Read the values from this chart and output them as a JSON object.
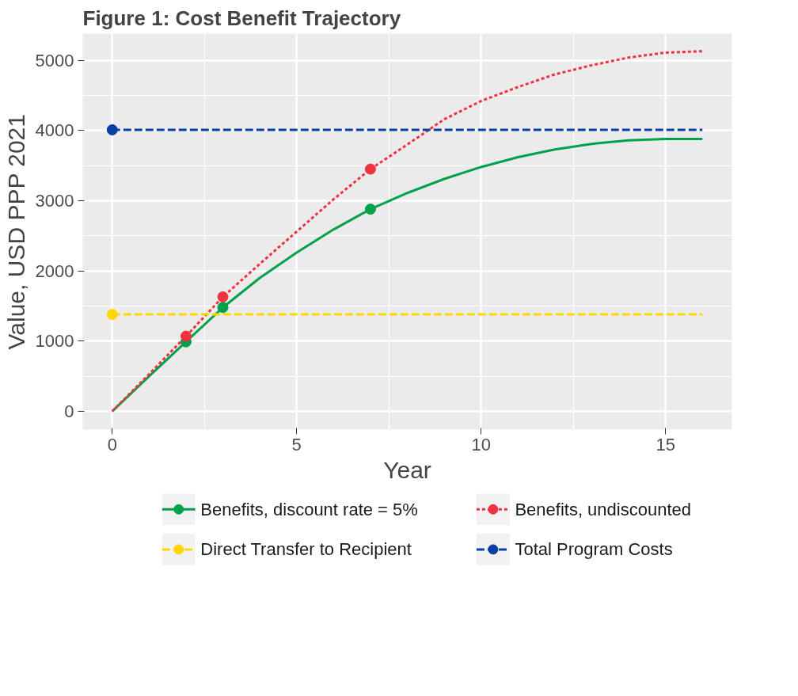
{
  "chart_data": {
    "type": "line",
    "title": "Figure 1: Cost Benefit Trajectory",
    "xlabel": "Year",
    "ylabel": "Value, USD PPP 2021",
    "xlim": [
      -0.8,
      16.8
    ],
    "ylim": [
      -260,
      5380
    ],
    "xticks": [
      0,
      5,
      10,
      15
    ],
    "yticks": [
      0,
      1000,
      2000,
      3000,
      4000,
      5000
    ],
    "grid": true,
    "legend": "bottom",
    "series": [
      {
        "name": "Benefits, discount rate = 5%",
        "color": "#00a14b",
        "line_style": "solid",
        "x": [
          0,
          1,
          2,
          3,
          4,
          5,
          6,
          7,
          8,
          9,
          10,
          11,
          12,
          13,
          14,
          15,
          16
        ],
        "values": [
          0,
          500,
          990,
          1480,
          1900,
          2260,
          2590,
          2880,
          3110,
          3310,
          3480,
          3620,
          3730,
          3810,
          3860,
          3880,
          3880
        ]
      },
      {
        "type": "scatter",
        "color": "#00a14b",
        "x": [
          2,
          3,
          7
        ],
        "values": [
          990,
          1480,
          2880
        ]
      },
      {
        "name": "Benefits, undiscounted",
        "color": "#ef3340",
        "line_style": "dotted",
        "x": [
          0,
          1,
          2,
          3,
          4,
          5,
          6,
          7,
          8,
          9,
          10,
          11,
          12,
          13,
          14,
          15,
          16
        ],
        "values": [
          0,
          530,
          1070,
          1630,
          2100,
          2560,
          3020,
          3450,
          3800,
          4160,
          4420,
          4620,
          4800,
          4930,
          5040,
          5110,
          5130
        ]
      },
      {
        "type": "scatter",
        "color": "#ef3340",
        "x": [
          2,
          3,
          7
        ],
        "values": [
          1070,
          1630,
          3450
        ]
      },
      {
        "name": "Direct Transfer to Recipient",
        "color": "#ffd700",
        "line_style": "dashed",
        "x": [
          0,
          16
        ],
        "values": [
          1380,
          1380
        ]
      },
      {
        "type": "scatter",
        "color": "#ffd700",
        "x": [
          0
        ],
        "values": [
          1380
        ]
      },
      {
        "name": "Total Program Costs",
        "color": "#0a3fa8",
        "line_style": "dashed",
        "x": [
          0,
          16
        ],
        "values": [
          4010,
          4010
        ]
      },
      {
        "type": "scatter",
        "color": "#0a3fa8",
        "x": [
          0
        ],
        "values": [
          4010
        ]
      }
    ]
  }
}
